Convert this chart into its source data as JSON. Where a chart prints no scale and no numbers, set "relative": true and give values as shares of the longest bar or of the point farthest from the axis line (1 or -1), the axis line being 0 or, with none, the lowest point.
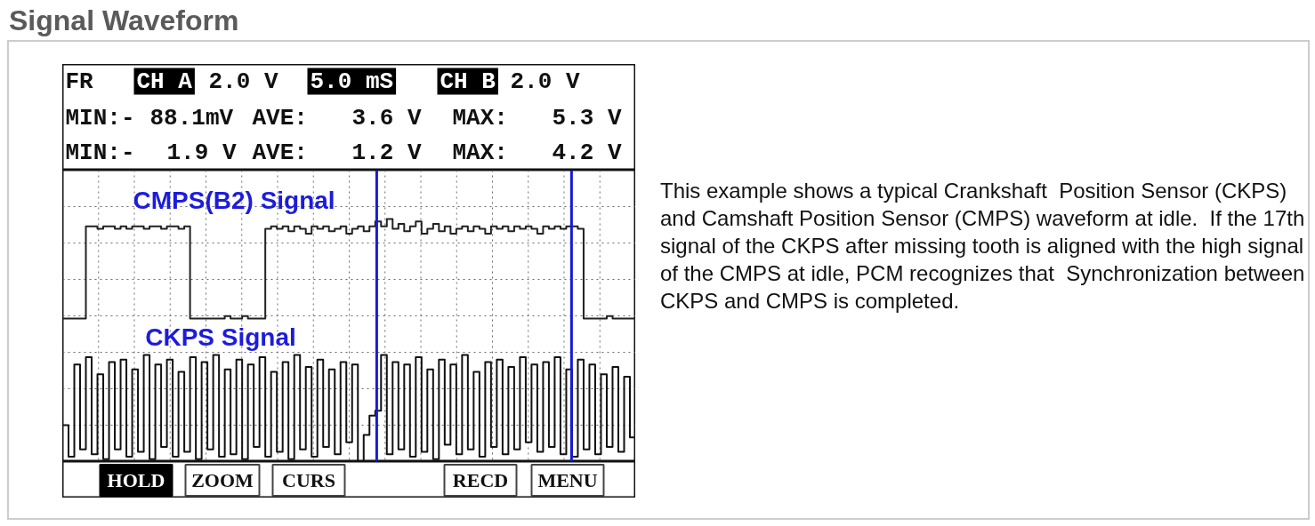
{
  "chart_data": {
    "type": "line",
    "title": "Signal Waveform",
    "relative": true,
    "grid": true,
    "categories": [
      null,
      null,
      null,
      null,
      null,
      null,
      null,
      null,
      null,
      null,
      null,
      null,
      null,
      null,
      null,
      null,
      null,
      null,
      null,
      null,
      null,
      null,
      null,
      null,
      null,
      null,
      null,
      null,
      null,
      null,
      null,
      null,
      null,
      null,
      null,
      null,
      null,
      null,
      null,
      null,
      null,
      null,
      null,
      null,
      null,
      null,
      null,
      null,
      null,
      null,
      null,
      null,
      null,
      null,
      null,
      null,
      null,
      null,
      null,
      null,
      null,
      null,
      null,
      null,
      null,
      null,
      null,
      null,
      null,
      null,
      null,
      null,
      null,
      null,
      null,
      null,
      null,
      null,
      null,
      null,
      null,
      null,
      null,
      null,
      null,
      null,
      null,
      null,
      null,
      null,
      null,
      null,
      null,
      null,
      null,
      null,
      null,
      null,
      null,
      null
    ],
    "series": [
      {
        "name": "CMPS(B2) Signal",
        "type": "step",
        "color": "#222222",
        "values": [
          0.59,
          0.59,
          0.59,
          0.59,
          0.97,
          0.97,
          0.96,
          0.97,
          0.97,
          0.96,
          0.97,
          0.96,
          0.97,
          0.97,
          0.96,
          0.97,
          0.97,
          0.96,
          0.97,
          0.97,
          0.96,
          0.97,
          0.59,
          0.59,
          0.59,
          0.59,
          0.59,
          0.59,
          0.6,
          0.59,
          0.59,
          0.6,
          0.59,
          0.59,
          0.59,
          0.96,
          0.97,
          0.96,
          0.97,
          0.95,
          0.97,
          0.96,
          0.94,
          0.97,
          0.96,
          0.97,
          0.95,
          0.96,
          0.97,
          0.94,
          0.96,
          0.97,
          0.95,
          0.97,
          0.99,
          0.97,
          1.0,
          0.96,
          0.98,
          0.95,
          0.97,
          0.99,
          0.94,
          0.96,
          0.98,
          0.95,
          0.97,
          0.94,
          0.96,
          0.97,
          0.95,
          0.97,
          0.96,
          0.94,
          0.97,
          0.96,
          0.97,
          0.95,
          0.97,
          0.96,
          0.97,
          0.96,
          0.94,
          0.97,
          0.96,
          0.97,
          0.96,
          0.97,
          0.97,
          0.96,
          0.59,
          0.59,
          0.59,
          0.59,
          0.6,
          0.59,
          0.59,
          0.59,
          0.59,
          0.59
        ]
      },
      {
        "name": "CKPS Signal",
        "type": "step",
        "color": "#111111",
        "values": [
          0.15,
          0.02,
          0.4,
          0.05,
          0.43,
          0.03,
          0.36,
          0.01,
          0.41,
          0.05,
          0.42,
          0.02,
          0.38,
          0.04,
          0.44,
          0.01,
          0.4,
          0.06,
          0.42,
          0.02,
          0.37,
          0.04,
          0.43,
          0.01,
          0.41,
          0.05,
          0.44,
          0.02,
          0.38,
          0.03,
          0.42,
          0.01,
          0.4,
          0.06,
          0.43,
          0.02,
          0.37,
          0.04,
          0.41,
          0.01,
          0.44,
          0.05,
          0.39,
          0.02,
          0.42,
          0.06,
          0.38,
          0.03,
          0.41,
          0.08,
          0.4,
          0.0,
          0.11,
          0.19,
          0.21,
          0.44,
          0.03,
          0.41,
          0.05,
          0.4,
          0.02,
          0.43,
          0.04,
          0.38,
          0.01,
          0.42,
          0.07,
          0.4,
          0.03,
          0.44,
          0.05,
          0.37,
          0.02,
          0.41,
          0.06,
          0.42,
          0.03,
          0.39,
          0.05,
          0.43,
          0.08,
          0.4,
          0.04,
          0.41,
          0.06,
          0.43,
          0.03,
          0.38,
          0.02,
          0.42,
          0.05,
          0.4,
          0.03,
          0.36,
          0.06,
          0.39,
          0.04,
          0.35,
          0.1,
          0.3
        ]
      }
    ],
    "annotations": [
      "FR",
      "CH A",
      "2.0 V",
      "5.0 mS",
      "CH B",
      "2.0 V",
      "MIN:-",
      "88.1mV",
      "AVE:",
      "3.6 V",
      "MAX:",
      "5.3 V",
      "MIN:-",
      "1.9 V",
      "AVE:",
      "1.2 V",
      "MAX:",
      "4.2 V",
      "HOLD",
      "ZOOM",
      "CURS",
      "RECD",
      "MENU",
      "This example shows a typical Crankshaft  Position Sensor (CKPS) and Camshaft Position Sensor (CMPS) waveform at idle.  If the 17th signal of the CKPS after missing tooth is aligned with the high signal of the CMPS at idle, PCM recognizes that  Synchronization between CKPS and CMPS is completed."
    ]
  }
}
